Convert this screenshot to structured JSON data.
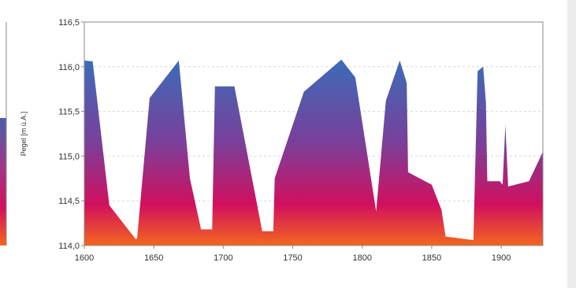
{
  "chart_data": {
    "type": "area",
    "title": "",
    "xlabel": "",
    "ylabel": "Pegel [m ü.A.]",
    "xlim": [
      1600,
      1930
    ],
    "ylim": [
      114.0,
      116.5
    ],
    "grid": true,
    "x_ticks": [
      "1600",
      "1650",
      "1700",
      "1750",
      "1800",
      "1850",
      "1900"
    ],
    "x_tick_values": [
      1600,
      1650,
      1700,
      1750,
      1800,
      1850,
      1900
    ],
    "y_ticks": [
      "114,0",
      "114,5",
      "115,0",
      "115,5",
      "116,0",
      "116,5"
    ],
    "y_tick_values": [
      114.0,
      114.5,
      115.0,
      115.5,
      116.0,
      116.5
    ],
    "colors": {
      "top": "#3b6cb8",
      "mid": "#7a3f9a",
      "magenta": "#d1105e",
      "bottom": "#f4661e",
      "grid": "#d8d8d8",
      "frame": "#8a8a8a"
    },
    "series": [
      {
        "x": [
          1600,
          1606,
          1618,
          1637,
          1638,
          1647,
          1668,
          1676,
          1684,
          1692,
          1694,
          1703,
          1708,
          1728,
          1736,
          1737,
          1758,
          1785,
          1795,
          1810,
          1817,
          1827,
          1832,
          1833,
          1850,
          1857,
          1860,
          1880,
          1883,
          1887,
          1889,
          1890,
          1899,
          1901,
          1903,
          1905,
          1920,
          1930
        ],
        "y": [
          116.07,
          116.06,
          114.45,
          114.07,
          114.08,
          115.65,
          116.07,
          114.75,
          114.18,
          114.18,
          115.78,
          115.78,
          115.78,
          114.16,
          114.16,
          114.75,
          115.72,
          116.08,
          115.88,
          114.38,
          115.62,
          116.07,
          115.82,
          114.82,
          114.68,
          114.4,
          114.1,
          114.06,
          115.95,
          116.0,
          115.6,
          114.72,
          114.72,
          114.68,
          115.35,
          114.66,
          114.72,
          115.05
        ]
      }
    ]
  },
  "left_fragment": {
    "colors": {
      "top": "#4a5fb0",
      "mid": "#9a3a8a",
      "magenta": "#d1105e",
      "bottom": "#f4661e"
    }
  }
}
